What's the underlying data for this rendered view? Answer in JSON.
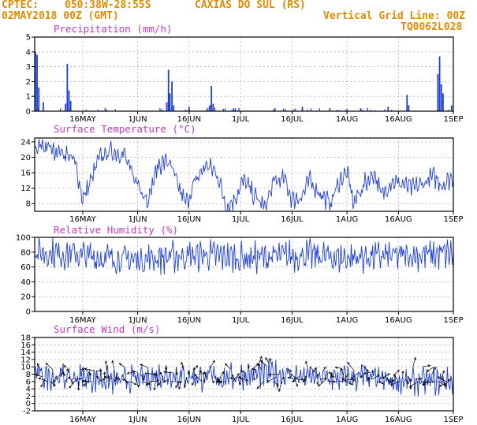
{
  "header": {
    "source": "CPTEC:",
    "coords": "050:38W-28:55S",
    "location": "CAXIAS DO SUL (RS)",
    "date": "02MAY2018 00Z (GMT)",
    "grid_note": "Vertical Grid Line: 00Z",
    "code": "TQ0062L028"
  },
  "colors": {
    "header": "#e08b00",
    "panel_title": "#c03ac0",
    "series": "#1f3fd4",
    "arrow": "#000000",
    "axis": "#000000",
    "grid": "#9a9a9a"
  },
  "x_ticks": [
    "16MAY",
    "1JUN",
    "16JUN",
    "1JUL",
    "16JUL",
    "1AUG",
    "16AUG",
    "1SEP"
  ],
  "chart_data": [
    {
      "type": "bar",
      "title": "Precipitation (mm/h)",
      "ylim": [
        0,
        5
      ],
      "yticks": [
        0,
        1,
        2,
        3,
        4,
        5
      ],
      "grid": true,
      "day_range": [
        0,
        122
      ],
      "events": [
        {
          "day": 0.2,
          "value": 4.0
        },
        {
          "day": 0.7,
          "value": 3.8
        },
        {
          "day": 1.2,
          "value": 1.6
        },
        {
          "day": 2.5,
          "value": 0.6
        },
        {
          "day": 9.0,
          "value": 0.5
        },
        {
          "day": 9.5,
          "value": 3.2
        },
        {
          "day": 10.0,
          "value": 1.4
        },
        {
          "day": 10.5,
          "value": 0.7
        },
        {
          "day": 38.5,
          "value": 0.6
        },
        {
          "day": 39.0,
          "value": 2.8
        },
        {
          "day": 39.4,
          "value": 1.2
        },
        {
          "day": 40.0,
          "value": 2.0
        },
        {
          "day": 40.5,
          "value": 0.4
        },
        {
          "day": 45.0,
          "value": 0.3
        },
        {
          "day": 51.0,
          "value": 0.4
        },
        {
          "day": 51.5,
          "value": 1.7
        },
        {
          "day": 52.0,
          "value": 0.5
        },
        {
          "day": 58.0,
          "value": 0.2
        },
        {
          "day": 70.0,
          "value": 0.2
        },
        {
          "day": 78.0,
          "value": 0.3
        },
        {
          "day": 86.0,
          "value": 0.2
        },
        {
          "day": 95.0,
          "value": 0.2
        },
        {
          "day": 103.0,
          "value": 0.3
        },
        {
          "day": 108.5,
          "value": 1.1
        },
        {
          "day": 109.0,
          "value": 0.4
        },
        {
          "day": 117.5,
          "value": 2.5
        },
        {
          "day": 118.0,
          "value": 3.7
        },
        {
          "day": 118.5,
          "value": 1.8
        },
        {
          "day": 119.0,
          "value": 1.2
        },
        {
          "day": 121.5,
          "value": 0.4
        }
      ]
    },
    {
      "type": "line",
      "title": "Surface Temperature (°C)",
      "ylim": [
        6,
        25
      ],
      "yticks": [
        8,
        12,
        16,
        20,
        24
      ],
      "grid": true,
      "day_range": [
        0,
        122
      ],
      "trend": [
        [
          0,
          21
        ],
        [
          2,
          23
        ],
        [
          6,
          22
        ],
        [
          10,
          20.5
        ],
        [
          12,
          18
        ],
        [
          14,
          9
        ],
        [
          16,
          13
        ],
        [
          19,
          20
        ],
        [
          22,
          21.5
        ],
        [
          26,
          21
        ],
        [
          28,
          16
        ],
        [
          31,
          12
        ],
        [
          33,
          9
        ],
        [
          36,
          18
        ],
        [
          39,
          19
        ],
        [
          42,
          12
        ],
        [
          44,
          8
        ],
        [
          47,
          14
        ],
        [
          50,
          18
        ],
        [
          53,
          16
        ],
        [
          56,
          7
        ],
        [
          58,
          9
        ],
        [
          61,
          14
        ],
        [
          64,
          10
        ],
        [
          67,
          7
        ],
        [
          70,
          14
        ],
        [
          73,
          14
        ],
        [
          75,
          9
        ],
        [
          78,
          10
        ],
        [
          80,
          14
        ],
        [
          83,
          11
        ],
        [
          86,
          8
        ],
        [
          89,
          14
        ],
        [
          91,
          16
        ],
        [
          93,
          8
        ],
        [
          96,
          13
        ],
        [
          99,
          16
        ],
        [
          101,
          10
        ],
        [
          104,
          14
        ],
        [
          107,
          13
        ],
        [
          110,
          12
        ],
        [
          113,
          13
        ],
        [
          116,
          15
        ],
        [
          119,
          13
        ],
        [
          122,
          15
        ]
      ],
      "amplitude": 2.0
    },
    {
      "type": "line",
      "title": "Relative Humidity (%)",
      "ylim": [
        0,
        100
      ],
      "yticks": [
        0,
        20,
        40,
        60,
        80,
        100
      ],
      "grid": true,
      "day_range": [
        0,
        122
      ],
      "trend": [
        [
          0,
          80
        ],
        [
          10,
          78
        ],
        [
          20,
          72
        ],
        [
          30,
          70
        ],
        [
          40,
          74
        ],
        [
          50,
          76
        ],
        [
          60,
          72
        ],
        [
          70,
          74
        ],
        [
          80,
          76
        ],
        [
          90,
          72
        ],
        [
          100,
          74
        ],
        [
          110,
          76
        ],
        [
          122,
          78
        ]
      ],
      "amplitude": 16
    },
    {
      "type": "line",
      "title": "Surface Wind (m/s)",
      "ylim": [
        -2,
        18
      ],
      "yticks": [
        -2,
        0,
        2,
        4,
        6,
        8,
        10,
        12,
        14,
        16,
        18
      ],
      "grid": true,
      "day_range": [
        0,
        122
      ],
      "trend": [
        [
          0,
          8
        ],
        [
          8,
          7
        ],
        [
          16,
          7
        ],
        [
          24,
          6
        ],
        [
          32,
          7
        ],
        [
          40,
          8
        ],
        [
          48,
          7
        ],
        [
          56,
          7
        ],
        [
          64,
          8
        ],
        [
          72,
          8
        ],
        [
          80,
          7
        ],
        [
          88,
          7
        ],
        [
          96,
          7
        ],
        [
          104,
          6
        ],
        [
          112,
          6
        ],
        [
          122,
          6
        ]
      ],
      "amplitude": 2.8,
      "vectors": "wind direction arrows along the series"
    }
  ]
}
